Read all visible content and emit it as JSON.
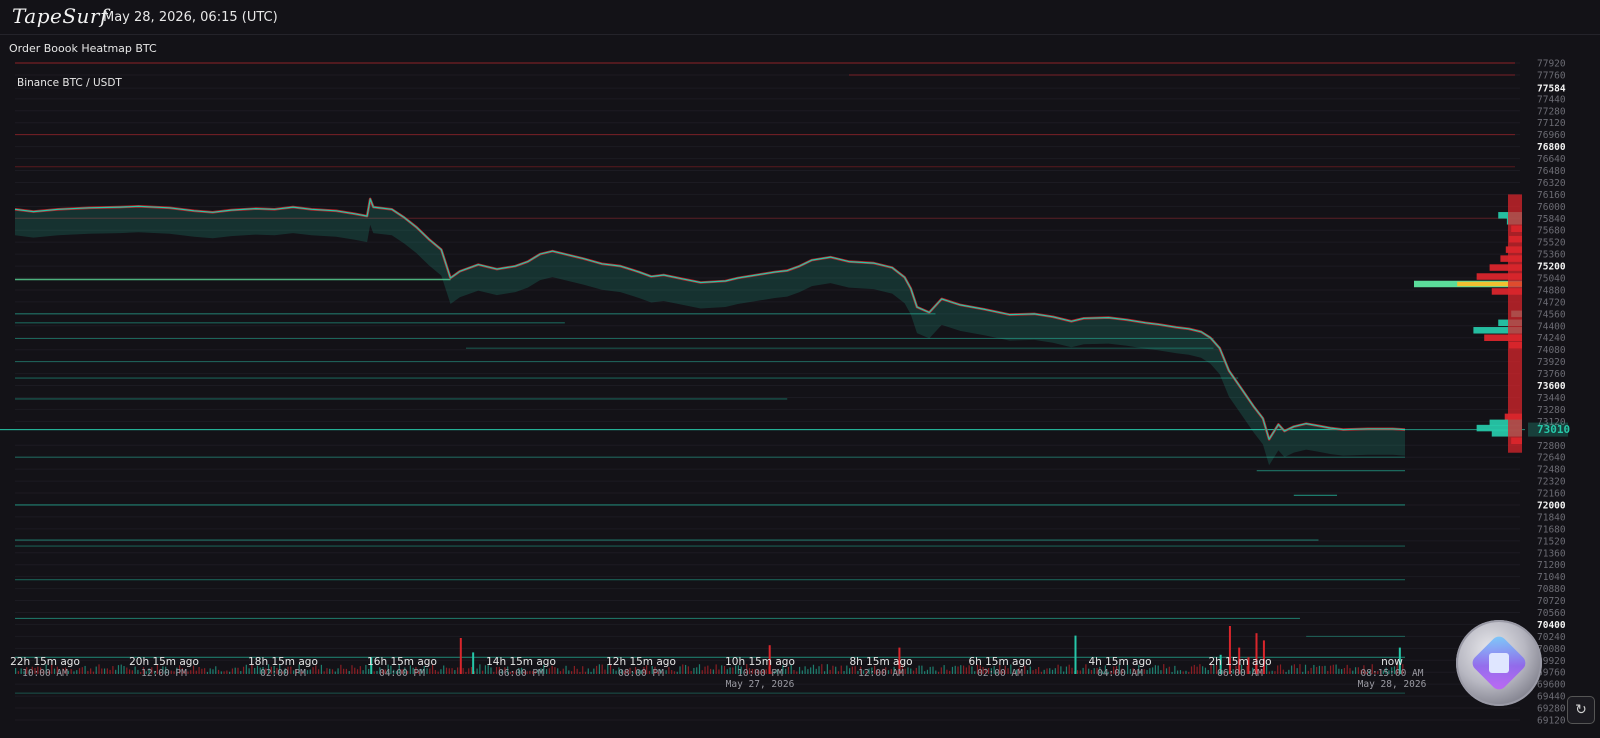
{
  "header": {
    "logo_text": "TapeSurf",
    "datetime": "May 28, 2026, 06:15 (UTC)",
    "subtitle": "Order Boook Heatmap BTC"
  },
  "colors": {
    "background": "#131217",
    "bid": "#26c7a8",
    "ask": "#d9262c",
    "liquidity_highlight": "#f0c030",
    "bright_line": "#5bdc9a"
  },
  "icons": {
    "logo_badge": "tapesurf-badge-icon",
    "refresh": "refresh-icon"
  },
  "chart_data": {
    "type": "heatmap",
    "market_label": "Binance BTC / USDT",
    "ylim": [
      69120,
      77920
    ],
    "y_ticks": [
      77920,
      77760,
      77584,
      77440,
      77280,
      77120,
      76960,
      76800,
      76640,
      76480,
      76320,
      76160,
      76000,
      75840,
      75680,
      75520,
      75360,
      75200,
      75040,
      74880,
      74720,
      74560,
      74400,
      74240,
      74080,
      73920,
      73760,
      73600,
      73440,
      73280,
      73120,
      73010,
      72800,
      72640,
      72480,
      72320,
      72160,
      72000,
      71840,
      71680,
      71520,
      71360,
      71200,
      71040,
      70880,
      70720,
      70560,
      70400,
      70240,
      70080,
      69920,
      69760,
      69600,
      69440,
      69280,
      69120
    ],
    "y_ticks_bold": [
      77584,
      76800,
      75200,
      73600,
      72000,
      70400
    ],
    "y_tick_highlighted": 73010,
    "current_price": 73010,
    "x_ticks": [
      {
        "rel": "22h 15m ago",
        "clock": "10:00 AM",
        "date": ""
      },
      {
        "rel": "20h 15m ago",
        "clock": "12:00 PM",
        "date": ""
      },
      {
        "rel": "18h 15m ago",
        "clock": "02:00 PM",
        "date": ""
      },
      {
        "rel": "16h 15m ago",
        "clock": "04:00 PM",
        "date": ""
      },
      {
        "rel": "14h 15m ago",
        "clock": "06:00 PM",
        "date": ""
      },
      {
        "rel": "12h 15m ago",
        "clock": "08:00 PM",
        "date": ""
      },
      {
        "rel": "10h 15m ago",
        "clock": "10:00 PM",
        "date": "May 27, 2026"
      },
      {
        "rel": "8h 15m ago",
        "clock": "12:00 AM",
        "date": ""
      },
      {
        "rel": "6h 15m ago",
        "clock": "02:00 AM",
        "date": ""
      },
      {
        "rel": "4h 15m ago",
        "clock": "04:00 AM",
        "date": ""
      },
      {
        "rel": "2h 15m ago",
        "clock": "06:00 AM",
        "date": ""
      },
      {
        "rel": "now",
        "clock": "08:15:00 AM",
        "date": "May 28, 2026"
      }
    ],
    "price_series": [
      [
        -22.5,
        75960
      ],
      [
        -22.2,
        75930
      ],
      [
        -21.8,
        75960
      ],
      [
        -21.3,
        75980
      ],
      [
        -20.8,
        75990
      ],
      [
        -20.5,
        76000
      ],
      [
        -20.0,
        75980
      ],
      [
        -19.6,
        75940
      ],
      [
        -19.3,
        75920
      ],
      [
        -19.0,
        75950
      ],
      [
        -18.6,
        75970
      ],
      [
        -18.3,
        75960
      ],
      [
        -18.0,
        75990
      ],
      [
        -17.7,
        75960
      ],
      [
        -17.3,
        75940
      ],
      [
        -17.0,
        75900
      ],
      [
        -16.8,
        75870
      ],
      [
        -16.75,
        76100
      ],
      [
        -16.7,
        75990
      ],
      [
        -16.4,
        75960
      ],
      [
        -16.2,
        75850
      ],
      [
        -16.0,
        75720
      ],
      [
        -15.8,
        75560
      ],
      [
        -15.6,
        75420
      ],
      [
        -15.45,
        75040
      ],
      [
        -15.3,
        75130
      ],
      [
        -15.0,
        75220
      ],
      [
        -14.7,
        75160
      ],
      [
        -14.4,
        75200
      ],
      [
        -14.2,
        75260
      ],
      [
        -14.0,
        75360
      ],
      [
        -13.8,
        75400
      ],
      [
        -13.5,
        75340
      ],
      [
        -13.3,
        75300
      ],
      [
        -13.0,
        75230
      ],
      [
        -12.7,
        75200
      ],
      [
        -12.4,
        75120
      ],
      [
        -12.2,
        75060
      ],
      [
        -12.0,
        75080
      ],
      [
        -11.7,
        75030
      ],
      [
        -11.4,
        74980
      ],
      [
        -11.0,
        75000
      ],
      [
        -10.8,
        75040
      ],
      [
        -10.5,
        75080
      ],
      [
        -10.2,
        75120
      ],
      [
        -10.0,
        75140
      ],
      [
        -9.8,
        75200
      ],
      [
        -9.6,
        75280
      ],
      [
        -9.3,
        75320
      ],
      [
        -9.0,
        75260
      ],
      [
        -8.6,
        75240
      ],
      [
        -8.3,
        75180
      ],
      [
        -8.1,
        75050
      ],
      [
        -8.0,
        74900
      ],
      [
        -7.9,
        74650
      ],
      [
        -7.7,
        74580
      ],
      [
        -7.5,
        74760
      ],
      [
        -7.2,
        74680
      ],
      [
        -6.8,
        74620
      ],
      [
        -6.4,
        74550
      ],
      [
        -6.0,
        74560
      ],
      [
        -5.7,
        74520
      ],
      [
        -5.4,
        74460
      ],
      [
        -5.2,
        74500
      ],
      [
        -4.8,
        74510
      ],
      [
        -4.5,
        74480
      ],
      [
        -4.2,
        74440
      ],
      [
        -4.0,
        74420
      ],
      [
        -3.7,
        74380
      ],
      [
        -3.5,
        74360
      ],
      [
        -3.3,
        74320
      ],
      [
        -3.15,
        74240
      ],
      [
        -3.0,
        74100
      ],
      [
        -2.85,
        73800
      ],
      [
        -2.65,
        73560
      ],
      [
        -2.45,
        73320
      ],
      [
        -2.3,
        73160
      ],
      [
        -2.2,
        72880
      ],
      [
        -2.05,
        73080
      ],
      [
        -1.95,
        72990
      ],
      [
        -1.8,
        73050
      ],
      [
        -1.6,
        73090
      ],
      [
        -1.4,
        73060
      ],
      [
        -1.2,
        73030
      ],
      [
        -1.0,
        73010
      ],
      [
        -0.6,
        73020
      ],
      [
        -0.2,
        73020
      ],
      [
        0,
        73010
      ]
    ],
    "bid_levels": [
      {
        "price": 75020,
        "from": -22.5,
        "to": -15.45,
        "strength": 0.9
      },
      {
        "price": 74560,
        "from": -22.5,
        "to": -7.6,
        "strength": 0.45
      },
      {
        "price": 74440,
        "from": -22.5,
        "to": -13.6,
        "strength": 0.35
      },
      {
        "price": 74230,
        "from": -22.5,
        "to": -3.1,
        "strength": 0.35
      },
      {
        "price": 74100,
        "from": -15.2,
        "to": -3.1,
        "strength": 0.2
      },
      {
        "price": 73920,
        "from": -22.5,
        "to": -2.9,
        "strength": 0.35
      },
      {
        "price": 73700,
        "from": -22.5,
        "to": -2.7,
        "strength": 0.3
      },
      {
        "price": 73420,
        "from": -22.5,
        "to": -10.0,
        "strength": 0.3
      },
      {
        "price": 73010,
        "from": -22.75,
        "to": 0,
        "strength": 0.7
      },
      {
        "price": 72640,
        "from": -22.5,
        "to": 0,
        "strength": 0.3
      },
      {
        "price": 72460,
        "from": -2.4,
        "to": 0,
        "strength": 0.5
      },
      {
        "price": 72130,
        "from": -1.8,
        "to": -1.1,
        "strength": 0.7
      },
      {
        "price": 72000,
        "from": -22.5,
        "to": 0,
        "strength": 0.6
      },
      {
        "price": 71530,
        "from": -22.5,
        "to": -1.4,
        "strength": 0.45
      },
      {
        "price": 71450,
        "from": -22.5,
        "to": 0,
        "strength": 0.25
      },
      {
        "price": 71000,
        "from": -22.5,
        "to": 0,
        "strength": 0.3
      },
      {
        "price": 70480,
        "from": -22.5,
        "to": -1.7,
        "strength": 0.45
      },
      {
        "price": 70240,
        "from": -1.6,
        "to": 0,
        "strength": 0.3
      },
      {
        "price": 69960,
        "from": -22.5,
        "to": 0,
        "strength": 0.55
      },
      {
        "price": 69480,
        "from": -22.5,
        "to": 0,
        "strength": 0.2
      }
    ],
    "ask_levels": [
      {
        "price": 77920,
        "from": -22.5,
        "to": 0,
        "strength": 0.5
      },
      {
        "price": 77760,
        "from": -9.0,
        "to": 0,
        "strength": 0.35
      },
      {
        "price": 76960,
        "from": -22.5,
        "to": 0,
        "strength": 0.35
      },
      {
        "price": 76530,
        "from": -22.5,
        "to": 0,
        "strength": 0.15
      },
      {
        "price": 75840,
        "from": -22.5,
        "to": 0,
        "strength": 0.12
      }
    ],
    "orderbook_profile": [
      {
        "price": 75880,
        "size": 0.22,
        "side": "bid"
      },
      {
        "price": 75800,
        "size": 0.14,
        "side": "bid"
      },
      {
        "price": 75700,
        "size": 0.1,
        "side": "ask"
      },
      {
        "price": 75560,
        "size": 0.12,
        "side": "ask"
      },
      {
        "price": 75420,
        "size": 0.15,
        "side": "ask"
      },
      {
        "price": 75300,
        "size": 0.2,
        "side": "ask"
      },
      {
        "price": 75180,
        "size": 0.3,
        "side": "ask"
      },
      {
        "price": 75060,
        "size": 0.42,
        "side": "ask"
      },
      {
        "price": 74960,
        "size": 1.0,
        "side": "bid_highlight"
      },
      {
        "price": 74860,
        "size": 0.28,
        "side": "ask"
      },
      {
        "price": 74560,
        "size": 0.1,
        "side": "bid"
      },
      {
        "price": 74440,
        "size": 0.22,
        "side": "bid"
      },
      {
        "price": 74340,
        "size": 0.45,
        "side": "bid"
      },
      {
        "price": 74240,
        "size": 0.35,
        "side": "ask"
      },
      {
        "price": 74140,
        "size": 0.12,
        "side": "ask"
      },
      {
        "price": 73180,
        "size": 0.16,
        "side": "ask"
      },
      {
        "price": 73100,
        "size": 0.3,
        "side": "bid"
      },
      {
        "price": 73030,
        "size": 0.42,
        "side": "bid"
      },
      {
        "price": 72960,
        "size": 0.28,
        "side": "bid"
      },
      {
        "price": 72860,
        "size": 0.1,
        "side": "ask"
      }
    ],
    "volume_bars": [
      {
        "t": -16.75,
        "v": 0.35,
        "side": "buy"
      },
      {
        "t": -15.3,
        "v": 0.75,
        "side": "sell"
      },
      {
        "t": -15.1,
        "v": 0.45,
        "side": "buy"
      },
      {
        "t": -8.2,
        "v": 0.55,
        "side": "sell"
      },
      {
        "t": -10.3,
        "v": 0.6,
        "side": "sell"
      },
      {
        "t": -5.35,
        "v": 0.8,
        "side": "buy"
      },
      {
        "t": -3.0,
        "v": 0.4,
        "side": "buy"
      },
      {
        "t": -2.85,
        "v": 1.0,
        "side": "sell"
      },
      {
        "t": -2.7,
        "v": 0.55,
        "side": "sell"
      },
      {
        "t": -2.55,
        "v": 0.35,
        "side": "sell"
      },
      {
        "t": -2.42,
        "v": 0.85,
        "side": "sell"
      },
      {
        "t": -2.3,
        "v": 0.7,
        "side": "sell"
      },
      {
        "t": -0.1,
        "v": 0.55,
        "side": "buy"
      }
    ]
  }
}
